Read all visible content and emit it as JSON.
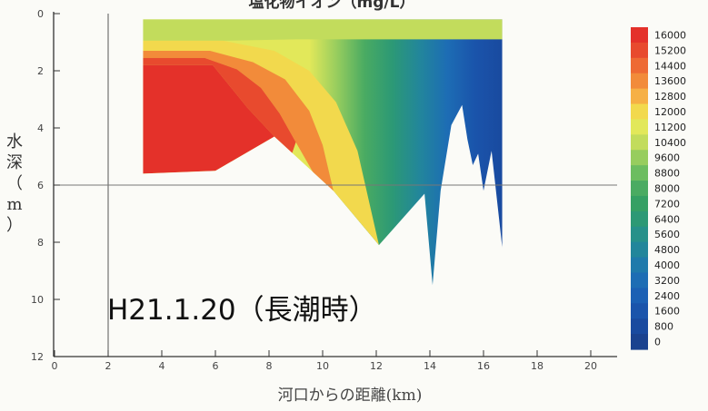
{
  "chart_data": {
    "type": "heatmap",
    "title": "塩化物イオン（mg/L）",
    "xlabel": "河口からの距離(km)",
    "ylabel_chars": [
      "水",
      "深",
      "（",
      "m",
      "）"
    ],
    "annotation": "H21.1.20（長潮時）",
    "xlim": [
      0,
      21
    ],
    "ylim": [
      12,
      0
    ],
    "y_inverted": true,
    "xticks": [
      0,
      2,
      4,
      6,
      8,
      10,
      12,
      14,
      16,
      18,
      20
    ],
    "yticks": [
      0,
      2,
      4,
      6,
      8,
      10,
      12
    ],
    "reference_lines": [
      {
        "axis": "x",
        "value": 2
      },
      {
        "axis": "y",
        "value": 6
      }
    ],
    "grid": false,
    "colorbar": {
      "placement": "right",
      "levels": [
        16000,
        15200,
        14400,
        13600,
        12800,
        12000,
        11200,
        10400,
        9600,
        8800,
        8000,
        7200,
        6400,
        5600,
        4800,
        4000,
        3200,
        2400,
        1600,
        800,
        0
      ],
      "colors": [
        "#e4312a",
        "#e84a2e",
        "#ee6a34",
        "#f28b3a",
        "#f6b045",
        "#f2d94d",
        "#e2e85a",
        "#c2dc5c",
        "#97cd5e",
        "#6cbd60",
        "#4aab62",
        "#35a064",
        "#2c9975",
        "#26918a",
        "#22869b",
        "#1f7aab",
        "#1d6db4",
        "#1b60b4",
        "#1a54ab",
        "#194a9f",
        "#1a428f"
      ]
    },
    "domain_boundary": {
      "x": [
        3.3,
        16.7,
        16.7,
        16.3,
        16.0,
        15.8,
        15.6,
        15.4,
        15.2,
        14.8,
        14.4,
        14.1,
        13.8,
        12.1,
        10.4,
        8.2,
        6.0,
        3.3
      ],
      "depth": [
        0.2,
        0.2,
        8.2,
        4.8,
        6.2,
        4.9,
        5.3,
        4.4,
        3.2,
        3.9,
        6.2,
        9.5,
        6.3,
        8.1,
        6.2,
        4.3,
        5.5,
        5.6
      ]
    },
    "regions": [
      {
        "range": "16000+",
        "x": [
          3.3,
          5.9,
          7.2,
          8.2,
          6.0,
          3.3
        ],
        "depth": [
          1.8,
          1.8,
          3.3,
          4.3,
          5.5,
          5.6
        ]
      },
      {
        "range": "14400-16000",
        "x": [
          3.3,
          5.6,
          6.8,
          7.7,
          8.4,
          9.0,
          8.6,
          8.2,
          7.2,
          5.9,
          3.3
        ],
        "depth": [
          1.55,
          1.55,
          1.95,
          2.6,
          3.5,
          4.5,
          5.6,
          4.3,
          3.3,
          1.8,
          1.8
        ]
      },
      {
        "range": "12800-14400",
        "x": [
          3.3,
          5.8,
          7.4,
          8.6,
          9.5,
          10.0,
          10.4,
          10.1,
          9.0,
          8.4,
          7.7,
          6.8,
          5.6,
          3.3
        ],
        "depth": [
          1.3,
          1.3,
          1.7,
          2.3,
          3.4,
          4.6,
          6.2,
          6.3,
          4.5,
          3.5,
          2.6,
          1.95,
          1.55,
          1.55
        ]
      },
      {
        "range": "11200-12800",
        "x": [
          3.3,
          6.3,
          8.2,
          9.5,
          10.5,
          11.3,
          12.1,
          10.4,
          10.0,
          9.5,
          8.6,
          7.4,
          5.8,
          3.3
        ],
        "depth": [
          0.95,
          0.95,
          1.3,
          2.0,
          3.1,
          4.8,
          8.1,
          6.2,
          4.6,
          3.4,
          2.3,
          1.7,
          1.3,
          1.3
        ]
      }
    ],
    "gradient_zone": {
      "x_start": 9.5,
      "x_end": 16.7,
      "value_start": 11200,
      "value_end": 800
    }
  }
}
